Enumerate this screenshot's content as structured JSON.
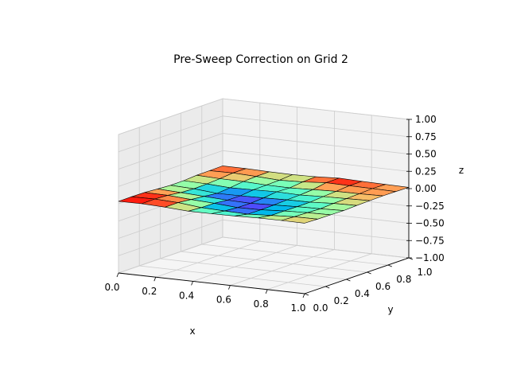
{
  "chart_data": {
    "type": "surface3d",
    "title": "Pre-Sweep Correction on Grid 2",
    "xlabel": "x",
    "ylabel": "y",
    "zlabel": "z",
    "xlim": [
      0.0,
      1.0
    ],
    "ylim": [
      0.0,
      1.0
    ],
    "zlim": [
      -1.0,
      1.0
    ],
    "x_ticks": [
      "0.0",
      "0.2",
      "0.4",
      "0.6",
      "0.8",
      "1.0"
    ],
    "y_ticks": [
      "0.0",
      "0.2",
      "0.4",
      "0.6",
      "0.8",
      "1.0"
    ],
    "z_ticks": [
      "−1.00",
      "−0.75",
      "−0.50",
      "−0.25",
      "0.00",
      "0.25",
      "0.50",
      "0.75",
      "1.00"
    ],
    "grid": true,
    "colormap": "rainbow",
    "color_range": [
      -0.04,
      0.04
    ],
    "grid_x": [
      0.0,
      0.125,
      0.25,
      0.375,
      0.5,
      0.625,
      0.75,
      0.875,
      1.0
    ],
    "grid_y": [
      0.0,
      0.125,
      0.25,
      0.375,
      0.5,
      0.625,
      0.75,
      0.875,
      1.0
    ],
    "z_values": [
      [
        0.035,
        0.038,
        0.025,
        0.005,
        0.006,
        0.01,
        0.02,
        0.02,
        0.018
      ],
      [
        0.036,
        0.04,
        0.026,
        -0.008,
        -0.02,
        -0.028,
        -0.01,
        0.01,
        0.012
      ],
      [
        0.034,
        0.03,
        0.006,
        -0.01,
        -0.035,
        -0.03,
        -0.01,
        0.004,
        0.01
      ],
      [
        0.02,
        0.006,
        -0.012,
        -0.03,
        -0.038,
        -0.026,
        -0.012,
        -0.005,
        0.006
      ],
      [
        0.008,
        -0.005,
        -0.035,
        -0.032,
        -0.025,
        -0.015,
        -0.012,
        0.008,
        0.015
      ],
      [
        0.01,
        0.0,
        -0.018,
        -0.01,
        -0.002,
        -0.01,
        0.004,
        0.012,
        0.02
      ],
      [
        0.024,
        0.012,
        0.008,
        -0.006,
        -0.01,
        0.004,
        0.016,
        0.018,
        0.025
      ],
      [
        0.026,
        0.03,
        0.016,
        0.0,
        0.012,
        0.038,
        0.032,
        0.028,
        0.022
      ],
      [
        0.03,
        0.028,
        0.02,
        0.016,
        0.022,
        0.04,
        0.03,
        0.024,
        0.018
      ]
    ]
  }
}
